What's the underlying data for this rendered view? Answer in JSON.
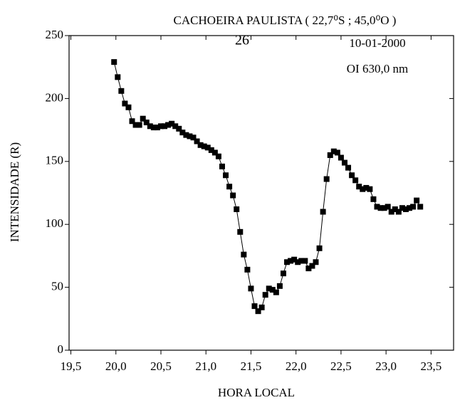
{
  "chart_data": {
    "type": "line",
    "title": "CACHOEIRA PAULISTA ( 22,7⁰S ; 45,0⁰O )",
    "page_number": "26",
    "annotations": [
      "10-01-2000",
      "OI 630,0 nm"
    ],
    "x_label": "HORA LOCAL",
    "y_label": "INTENSIDADE (R)",
    "xlim": [
      19.48,
      23.75
    ],
    "ylim": [
      0,
      250
    ],
    "xticks": [
      {
        "value": 19.5,
        "label": "19,5"
      },
      {
        "value": 20.0,
        "label": "20,0"
      },
      {
        "value": 20.5,
        "label": "20,5"
      },
      {
        "value": 21.0,
        "label": "21,0"
      },
      {
        "value": 21.5,
        "label": "21,5"
      },
      {
        "value": 22.0,
        "label": "22,0"
      },
      {
        "value": 22.5,
        "label": "22,5"
      },
      {
        "value": 23.0,
        "label": "23,0"
      },
      {
        "value": 23.5,
        "label": "23,5"
      }
    ],
    "yticks": [
      0,
      50,
      100,
      150,
      200,
      250
    ],
    "series": [
      {
        "color": "#000000",
        "x": [
          19.98,
          20.02,
          20.06,
          20.1,
          20.14,
          20.18,
          20.22,
          20.26,
          20.3,
          20.34,
          20.38,
          20.42,
          20.46,
          20.5,
          20.54,
          20.58,
          20.62,
          20.66,
          20.7,
          20.74,
          20.78,
          20.82,
          20.86,
          20.9,
          20.94,
          20.98,
          21.02,
          21.06,
          21.1,
          21.14,
          21.18,
          21.22,
          21.26,
          21.3,
          21.34,
          21.38,
          21.42,
          21.46,
          21.5,
          21.54,
          21.58,
          21.62,
          21.66,
          21.7,
          21.74,
          21.78,
          21.82,
          21.86,
          21.9,
          21.94,
          21.98,
          22.02,
          22.06,
          22.1,
          22.14,
          22.18,
          22.22,
          22.26,
          22.3,
          22.34,
          22.38,
          22.42,
          22.46,
          22.5,
          22.54,
          22.58,
          22.62,
          22.66,
          22.7,
          22.74,
          22.78,
          22.82,
          22.86,
          22.9,
          22.94,
          22.98,
          23.02,
          23.06,
          23.1,
          23.14,
          23.18,
          23.22,
          23.26,
          23.3,
          23.34,
          23.38
        ],
        "values": [
          229,
          217,
          206,
          196,
          193,
          182,
          179,
          179,
          184,
          181,
          178,
          177,
          177,
          178,
          178,
          179,
          180,
          178,
          176,
          173,
          171,
          170,
          169,
          166,
          163,
          162,
          161,
          159,
          157,
          154,
          146,
          139,
          130,
          123,
          112,
          94,
          76,
          64,
          49,
          35,
          31,
          34,
          44,
          49,
          48,
          46,
          51,
          61,
          70,
          71,
          72,
          70,
          71,
          71,
          65,
          67,
          70,
          81,
          110,
          136,
          155,
          158,
          157,
          153,
          149,
          145,
          139,
          135,
          130,
          128,
          129,
          128,
          120,
          114,
          113,
          113,
          114,
          110,
          112,
          110,
          113,
          112,
          113,
          114,
          119,
          114
        ]
      }
    ]
  }
}
